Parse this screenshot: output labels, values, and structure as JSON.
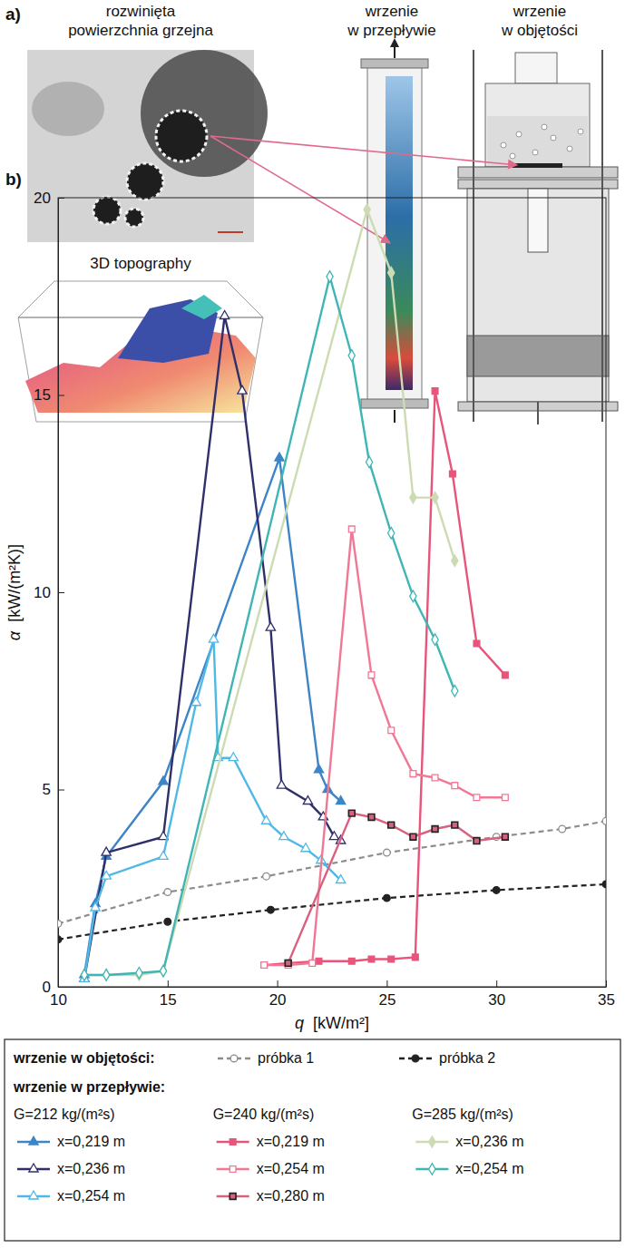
{
  "panel_a": {
    "label": "a)",
    "surface_title": "rozwinięta powierzchnia grzejna",
    "flow_title": "wrzenie w przepływie",
    "pool_title": "wrzenie w objętości",
    "topography_label": "3D topography"
  },
  "panel_b": {
    "label": "b)"
  },
  "chart_data": {
    "type": "line",
    "x_label": "q [kW/m²]",
    "y_label": "α [kW/(m²K)]",
    "xlim": [
      10,
      35
    ],
    "xticks": [
      10,
      15,
      20,
      25,
      30,
      35
    ],
    "ylim": [
      0,
      20
    ],
    "yticks": [
      0,
      5,
      10,
      15,
      20
    ],
    "grid": false,
    "legend": "bottom",
    "series": [
      {
        "name": "próbka 1",
        "category": "wrzenie w objętości:",
        "color": "#8c8c8c",
        "marker": "circle-open",
        "line_style": "dashed",
        "x": [
          10,
          15,
          19.5,
          25,
          30,
          33,
          35
        ],
        "values": [
          1.6,
          2.4,
          2.8,
          3.4,
          3.8,
          4.0,
          4.2
        ]
      },
      {
        "name": "próbka 2",
        "category": "wrzenie w objętości:",
        "color": "#222222",
        "marker": "circle",
        "line_style": "dashed",
        "x": [
          10,
          15,
          19.7,
          25,
          30,
          35
        ],
        "values": [
          1.2,
          1.65,
          1.95,
          2.25,
          2.45,
          2.6
        ]
      },
      {
        "name": "x=0,219 m",
        "category": "wrzenie w przepływie:",
        "group": "G=212 kg/(m²s)",
        "color": "#3d85c6",
        "marker": "triangle",
        "line_style": "solid",
        "x": [
          11.2,
          11.7,
          12.2,
          14.8,
          20.1,
          21.9,
          22.3,
          22.9
        ],
        "values": [
          0.3,
          2.1,
          3.3,
          5.2,
          13.4,
          5.5,
          5.0,
          4.7
        ]
      },
      {
        "name": "x=0,236 m",
        "category": "wrzenie w przepływie:",
        "group": "G=212 kg/(m²s)",
        "color": "#2e2f6b",
        "marker": "triangle-open",
        "line_style": "solid",
        "x": [
          11.2,
          12.2,
          14.8,
          17.6,
          18.4,
          19.7,
          20.2,
          21.4,
          22.1,
          22.6,
          22.9
        ],
        "values": [
          0.2,
          3.4,
          3.8,
          17.0,
          15.1,
          9.1,
          5.1,
          4.7,
          4.3,
          3.8,
          3.7
        ]
      },
      {
        "name": "x=0,254 m",
        "category": "wrzenie w przepływie:",
        "group": "G=212 kg/(m²s)",
        "color": "#4fb8e6",
        "marker": "triangle-open",
        "line_style": "solid",
        "x": [
          11.2,
          11.7,
          12.2,
          14.8,
          16.3,
          17.1,
          17.3,
          18.0,
          19.5,
          20.3,
          21.3,
          22.0,
          22.9
        ],
        "values": [
          0.2,
          2.0,
          2.8,
          3.3,
          7.2,
          8.8,
          5.8,
          5.8,
          4.2,
          3.8,
          3.5,
          3.2,
          2.7
        ]
      },
      {
        "name": "x=0,219 m",
        "category": "wrzenie w przepływie:",
        "group": "G=240 kg/(m²s)",
        "color": "#e8557a",
        "marker": "square",
        "line_style": "solid",
        "x": [
          19.4,
          20.5,
          21.9,
          23.4,
          24.3,
          25.2,
          26.3,
          27.2,
          28.0,
          29.1,
          30.4
        ],
        "values": [
          0.55,
          0.6,
          0.65,
          0.65,
          0.7,
          0.7,
          0.75,
          15.1,
          13.0,
          8.7,
          7.9
        ]
      },
      {
        "name": "x=0,254 m",
        "category": "wrzenie w przepływie:",
        "group": "G=240 kg/(m²s)",
        "color": "#f07894",
        "marker": "square-open",
        "line_style": "solid",
        "x": [
          19.4,
          20.5,
          21.6,
          23.4,
          24.3,
          25.2,
          26.2,
          27.2,
          28.1,
          29.1,
          30.4
        ],
        "values": [
          0.55,
          0.55,
          0.6,
          11.6,
          7.9,
          6.5,
          5.4,
          5.3,
          5.1,
          4.8,
          4.8
        ]
      },
      {
        "name": "x=0,280 m",
        "category": "wrzenie w przepływie:",
        "group": "G=240 kg/(m²s)",
        "color": "#d9607f",
        "marker": "square-dark",
        "line_style": "solid",
        "x": [
          20.5,
          23.4,
          24.3,
          25.2,
          26.2,
          27.2,
          28.1,
          29.1,
          30.4
        ],
        "values": [
          0.6,
          4.4,
          4.3,
          4.1,
          3.8,
          4.0,
          4.1,
          3.7,
          3.8
        ]
      },
      {
        "name": "x=0,236 m",
        "category": "wrzenie w przepływie:",
        "group": "G=285 kg/(m²s)",
        "color": "#cddbb3",
        "marker": "diamond",
        "line_style": "solid",
        "x": [
          11.2,
          12.2,
          13.7,
          14.8,
          24.1,
          25.2,
          26.2,
          27.2,
          28.1
        ],
        "values": [
          0.3,
          0.3,
          0.3,
          0.4,
          19.7,
          18.1,
          12.4,
          12.4,
          10.8
        ]
      },
      {
        "name": "x=0,254 m",
        "category": "wrzenie w przepływie:",
        "group": "G=285 kg/(m²s)",
        "color": "#3fb5b5",
        "marker": "diamond-open",
        "line_style": "solid",
        "x": [
          11.2,
          12.2,
          13.7,
          14.8,
          22.4,
          23.4,
          24.2,
          25.2,
          26.2,
          27.2,
          28.1
        ],
        "values": [
          0.3,
          0.3,
          0.35,
          0.4,
          18.0,
          16.0,
          13.3,
          11.5,
          9.9,
          8.8,
          7.5
        ]
      }
    ]
  }
}
